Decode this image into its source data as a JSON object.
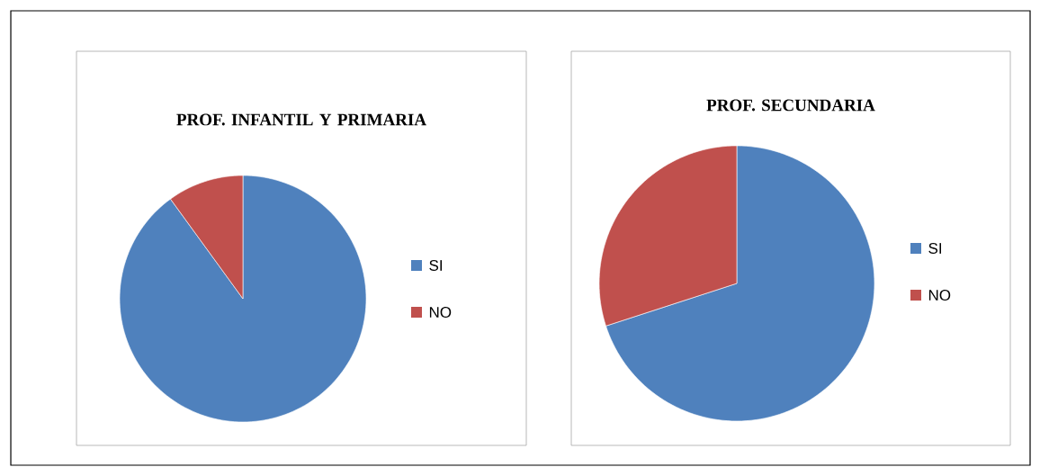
{
  "chart_data": [
    {
      "type": "pie",
      "title": "PROF. INFANTIL Y PRIMARIA",
      "categories": [
        "SI",
        "NO"
      ],
      "values": [
        90,
        10
      ],
      "colors": [
        "#4f81bd",
        "#c0504d"
      ],
      "legend": "right"
    },
    {
      "type": "pie",
      "title": "PROF. SECUNDARIA",
      "categories": [
        "SI",
        "NO"
      ],
      "values": [
        70,
        30
      ],
      "colors": [
        "#4f81bd",
        "#c0504d"
      ],
      "legend": "right"
    }
  ]
}
